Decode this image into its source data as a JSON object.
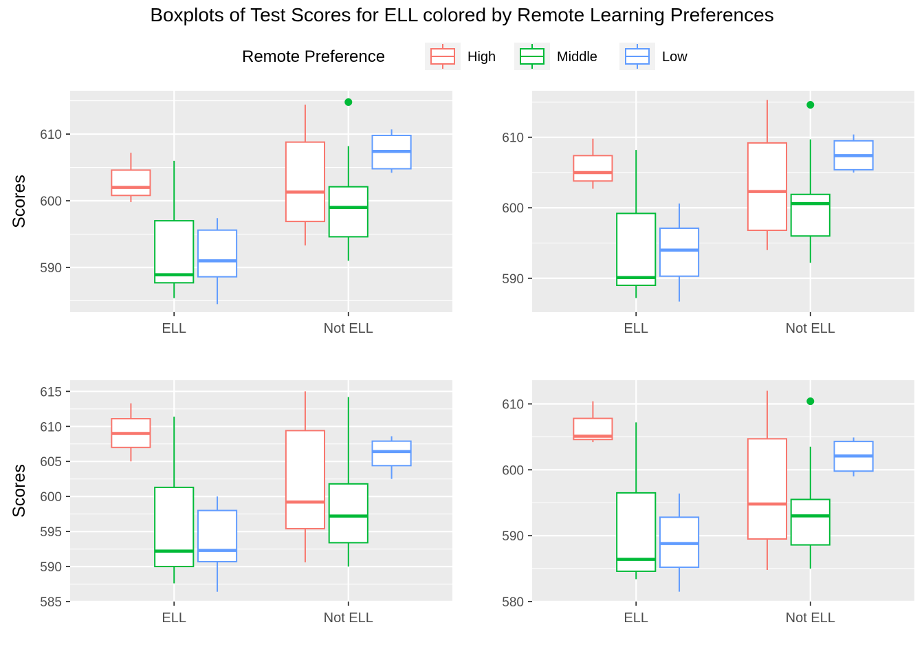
{
  "chart_data": {
    "type": "boxplot",
    "title": "Boxplots of Test Scores for ELL colored by Remote Learning Preferences",
    "legend": {
      "title": "Remote Preference",
      "position": "top",
      "entries": [
        {
          "name": "High",
          "color": "#F8766D"
        },
        {
          "name": "Middle",
          "color": "#00BA38"
        },
        {
          "name": "Low",
          "color": "#619CFF"
        }
      ]
    },
    "panels": [
      {
        "ylabel": "Scores",
        "xlabel": "",
        "ylim": [
          583.3,
          616.5
        ],
        "yticks": [
          590,
          600,
          610
        ],
        "categories": [
          "ELL",
          "Not ELL"
        ],
        "boxes": [
          {
            "category": "ELL",
            "group": "High",
            "min": 599.8,
            "q1": 600.8,
            "median": 602.0,
            "q3": 604.6,
            "max": 607.2,
            "outliers": []
          },
          {
            "category": "ELL",
            "group": "Middle",
            "min": 585.4,
            "q1": 587.7,
            "median": 588.9,
            "q3": 597.0,
            "max": 606.0,
            "outliers": []
          },
          {
            "category": "ELL",
            "group": "Low",
            "min": 584.5,
            "q1": 588.6,
            "median": 591.0,
            "q3": 595.6,
            "max": 597.4,
            "outliers": []
          },
          {
            "category": "Not ELL",
            "group": "High",
            "min": 593.3,
            "q1": 596.9,
            "median": 601.3,
            "q3": 608.8,
            "max": 614.4,
            "outliers": []
          },
          {
            "category": "Not ELL",
            "group": "Middle",
            "min": 591.0,
            "q1": 594.6,
            "median": 599.0,
            "q3": 602.1,
            "max": 608.2,
            "outliers": [
              614.8
            ]
          },
          {
            "category": "Not ELL",
            "group": "Low",
            "min": 604.2,
            "q1": 604.8,
            "median": 607.4,
            "q3": 609.8,
            "max": 610.7,
            "outliers": []
          }
        ]
      },
      {
        "ylabel": "",
        "xlabel": "",
        "ylim": [
          585.2,
          616.6
        ],
        "yticks": [
          590,
          600,
          610
        ],
        "categories": [
          "ELL",
          "Not ELL"
        ],
        "boxes": [
          {
            "category": "ELL",
            "group": "High",
            "min": 602.7,
            "q1": 603.8,
            "median": 605.0,
            "q3": 607.4,
            "max": 609.8,
            "outliers": []
          },
          {
            "category": "ELL",
            "group": "Middle",
            "min": 587.2,
            "q1": 589.0,
            "median": 590.1,
            "q3": 599.2,
            "max": 608.2,
            "outliers": []
          },
          {
            "category": "ELL",
            "group": "Low",
            "min": 586.7,
            "q1": 590.3,
            "median": 594.0,
            "q3": 597.1,
            "max": 600.6,
            "outliers": []
          },
          {
            "category": "Not ELL",
            "group": "High",
            "min": 594.0,
            "q1": 596.8,
            "median": 602.3,
            "q3": 609.2,
            "max": 615.3,
            "outliers": []
          },
          {
            "category": "Not ELL",
            "group": "Middle",
            "min": 592.2,
            "q1": 596.0,
            "median": 600.6,
            "q3": 601.9,
            "max": 609.7,
            "outliers": [
              614.6
            ]
          },
          {
            "category": "Not ELL",
            "group": "Low",
            "min": 605.0,
            "q1": 605.4,
            "median": 607.4,
            "q3": 609.5,
            "max": 610.4,
            "outliers": []
          }
        ]
      },
      {
        "ylabel": "Scores",
        "xlabel": "",
        "ylim": [
          585.0,
          616.6
        ],
        "yticks": [
          585,
          590,
          595,
          600,
          605,
          610,
          615
        ],
        "categories": [
          "ELL",
          "Not ELL"
        ],
        "boxes": [
          {
            "category": "ELL",
            "group": "High",
            "min": 605.0,
            "q1": 607.0,
            "median": 609.0,
            "q3": 611.1,
            "max": 613.3,
            "outliers": []
          },
          {
            "category": "ELL",
            "group": "Middle",
            "min": 587.6,
            "q1": 590.0,
            "median": 592.2,
            "q3": 601.3,
            "max": 611.4,
            "outliers": []
          },
          {
            "category": "ELL",
            "group": "Low",
            "min": 586.4,
            "q1": 590.7,
            "median": 592.3,
            "q3": 598.0,
            "max": 600.0,
            "outliers": []
          },
          {
            "category": "Not ELL",
            "group": "High",
            "min": 590.6,
            "q1": 595.4,
            "median": 599.2,
            "q3": 609.4,
            "max": 615.0,
            "outliers": []
          },
          {
            "category": "Not ELL",
            "group": "Middle",
            "min": 590.0,
            "q1": 593.4,
            "median": 597.2,
            "q3": 601.8,
            "max": 614.2,
            "outliers": []
          },
          {
            "category": "Not ELL",
            "group": "Low",
            "min": 602.5,
            "q1": 604.4,
            "median": 606.4,
            "q3": 607.9,
            "max": 608.6,
            "outliers": []
          }
        ]
      },
      {
        "ylabel": "",
        "xlabel": "",
        "ylim": [
          580.0,
          613.6
        ],
        "yticks": [
          580,
          590,
          600,
          610
        ],
        "categories": [
          "ELL",
          "Not ELL"
        ],
        "boxes": [
          {
            "category": "ELL",
            "group": "High",
            "min": 604.2,
            "q1": 604.6,
            "median": 605.1,
            "q3": 607.8,
            "max": 610.4,
            "outliers": []
          },
          {
            "category": "ELL",
            "group": "Middle",
            "min": 583.4,
            "q1": 584.6,
            "median": 586.4,
            "q3": 596.5,
            "max": 607.2,
            "outliers": []
          },
          {
            "category": "ELL",
            "group": "Low",
            "min": 581.5,
            "q1": 585.2,
            "median": 588.8,
            "q3": 592.8,
            "max": 596.4,
            "outliers": []
          },
          {
            "category": "Not ELL",
            "group": "High",
            "min": 584.8,
            "q1": 589.5,
            "median": 594.8,
            "q3": 604.7,
            "max": 612.0,
            "outliers": []
          },
          {
            "category": "Not ELL",
            "group": "Middle",
            "min": 585.0,
            "q1": 588.6,
            "median": 593.0,
            "q3": 595.5,
            "max": 603.5,
            "outliers": [
              610.4
            ]
          },
          {
            "category": "Not ELL",
            "group": "Low",
            "min": 599.0,
            "q1": 599.8,
            "median": 602.1,
            "q3": 604.3,
            "max": 604.9,
            "outliers": []
          }
        ]
      }
    ]
  }
}
